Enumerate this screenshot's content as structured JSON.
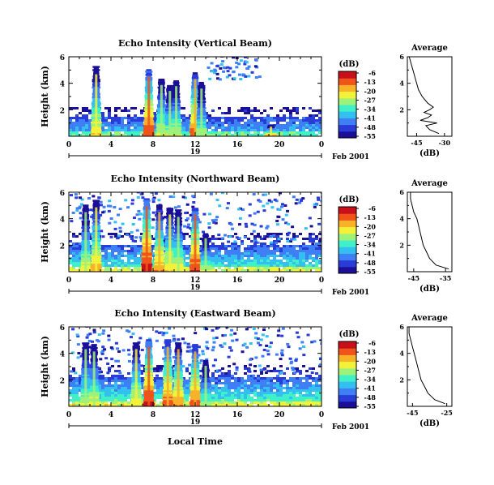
{
  "figure": {
    "xlabel": "Local Time",
    "date_label": "Feb 2001",
    "day_label": "19",
    "cbar_unit": "(dB)",
    "avg_title": "Average",
    "avg_xlabel": "(dB)",
    "ylabel": "Height (km)",
    "colormap": [
      "#1a0f96",
      "#2a3cd8",
      "#3f7ff5",
      "#33c0f0",
      "#3ff0c8",
      "#9ef27a",
      "#f2f23a",
      "#f7b22a",
      "#f0541a",
      "#c8101a"
    ]
  },
  "chart_data": [
    {
      "type": "heatmap",
      "title": "Echo Intensity (Vertical Beam)",
      "xlabel": "Local Time",
      "ylabel": "Height (km)",
      "x_ticks": [
        "0",
        "4",
        "8",
        "12",
        "16",
        "20",
        "0"
      ],
      "y_ticks": [
        "2",
        "4",
        "6"
      ],
      "xlim": [
        0,
        24
      ],
      "ylim": [
        0,
        6
      ],
      "colorbar": {
        "unit": "(dB)",
        "ticks": [
          "-6",
          "-13",
          "-20",
          "-27",
          "-34",
          "-41",
          "-48",
          "-55"
        ],
        "range": [
          -55,
          -6
        ]
      },
      "cloud_columns": [
        {
          "hour": 2.6,
          "top_km": 5.2,
          "peak_db": -18
        },
        {
          "hour": 7.6,
          "top_km": 5.0,
          "peak_db": -8
        },
        {
          "hour": 8.8,
          "top_km": 4.3,
          "peak_db": -20
        },
        {
          "hour": 9.6,
          "top_km": 3.8,
          "peak_db": -24
        },
        {
          "hour": 10.2,
          "top_km": 4.2,
          "peak_db": -22
        },
        {
          "hour": 12.0,
          "top_km": 4.8,
          "peak_db": -10
        },
        {
          "hour": 12.6,
          "top_km": 4.0,
          "peak_db": -24
        },
        {
          "hour": 19.2,
          "top_km": 0.8,
          "peak_db": -18
        }
      ],
      "boundary_layer_top_km": 1.3,
      "average_profile": {
        "title": "Average",
        "xlabel": "(dB)",
        "x_ticks": [
          "-45",
          "-30"
        ],
        "y_ticks": [
          "2",
          "4",
          "6"
        ],
        "xlim": [
          -50,
          -26
        ],
        "height_km": [
          0.2,
          0.5,
          0.8,
          1.0,
          1.2,
          1.4,
          1.6,
          1.8,
          2.0,
          2.2,
          2.5,
          3.0,
          3.5,
          4.0,
          4.5,
          5.0,
          5.5,
          6.0
        ],
        "db": [
          -33,
          -38,
          -40,
          -34,
          -43,
          -39,
          -37,
          -41,
          -38,
          -36,
          -39,
          -42,
          -44,
          -45,
          -46,
          -47,
          -48,
          -49
        ]
      }
    },
    {
      "type": "heatmap",
      "title": "Echo Intensity (Northward Beam)",
      "xlabel": "Local Time",
      "ylabel": "Height (km)",
      "x_ticks": [
        "0",
        "4",
        "8",
        "12",
        "16",
        "20",
        "0"
      ],
      "y_ticks": [
        "2",
        "4",
        "6"
      ],
      "xlim": [
        0,
        24
      ],
      "ylim": [
        0,
        6
      ],
      "colorbar": {
        "unit": "(dB)",
        "ticks": [
          "-6",
          "-13",
          "-20",
          "-27",
          "-34",
          "-41",
          "-48",
          "-55"
        ],
        "range": [
          -55,
          -6
        ]
      },
      "cloud_columns": [
        {
          "hour": 1.6,
          "top_km": 5.0,
          "peak_db": -20
        },
        {
          "hour": 2.6,
          "top_km": 5.4,
          "peak_db": -16
        },
        {
          "hour": 7.4,
          "top_km": 5.5,
          "peak_db": -6
        },
        {
          "hour": 8.6,
          "top_km": 5.0,
          "peak_db": -14
        },
        {
          "hour": 9.6,
          "top_km": 4.8,
          "peak_db": -18
        },
        {
          "hour": 10.4,
          "top_km": 4.6,
          "peak_db": -20
        },
        {
          "hour": 12.0,
          "top_km": 4.8,
          "peak_db": -8
        },
        {
          "hour": 13.0,
          "top_km": 2.8,
          "peak_db": -24
        }
      ],
      "boundary_layer_top_km": 2.0,
      "average_profile": {
        "title": "Average",
        "xlabel": "(dB)",
        "x_ticks": [
          "-45",
          "-35"
        ],
        "y_ticks": [
          "2",
          "4",
          "6"
        ],
        "xlim": [
          -47,
          -33
        ],
        "height_km": [
          0.2,
          0.5,
          1.0,
          1.5,
          2.0,
          2.5,
          3.0,
          3.5,
          4.0,
          4.5,
          5.0,
          5.5,
          6.0
        ],
        "db": [
          -34,
          -38,
          -40,
          -41,
          -42,
          -42.5,
          -43,
          -43.5,
          -44,
          -45,
          -45.5,
          -46,
          -46
        ]
      }
    },
    {
      "type": "heatmap",
      "title": "Echo Intensity (Eastward Beam)",
      "xlabel": "Local Time",
      "ylabel": "Height (km)",
      "x_ticks": [
        "0",
        "4",
        "8",
        "12",
        "16",
        "20",
        "0"
      ],
      "y_ticks": [
        "2",
        "4",
        "6"
      ],
      "xlim": [
        0,
        24
      ],
      "ylim": [
        0,
        6
      ],
      "colorbar": {
        "unit": "(dB)",
        "ticks": [
          "-6",
          "-13",
          "-20",
          "-27",
          "-34",
          "-41",
          "-48",
          "-55"
        ],
        "range": [
          -55,
          -6
        ]
      },
      "cloud_columns": [
        {
          "hour": 1.6,
          "top_km": 4.8,
          "peak_db": -22
        },
        {
          "hour": 2.4,
          "top_km": 4.6,
          "peak_db": -20
        },
        {
          "hour": 6.4,
          "top_km": 4.8,
          "peak_db": -18
        },
        {
          "hour": 7.6,
          "top_km": 5.0,
          "peak_db": -6
        },
        {
          "hour": 9.4,
          "top_km": 5.0,
          "peak_db": -10
        },
        {
          "hour": 10.4,
          "top_km": 4.8,
          "peak_db": -14
        },
        {
          "hour": 12.0,
          "top_km": 4.6,
          "peak_db": -10
        },
        {
          "hour": 13.0,
          "top_km": 3.4,
          "peak_db": -24
        }
      ],
      "boundary_layer_top_km": 2.2,
      "average_profile": {
        "title": "Average",
        "xlabel": "(dB)",
        "x_ticks": [
          "-45",
          "-25"
        ],
        "y_ticks": [
          "2",
          "4",
          "6"
        ],
        "xlim": [
          -48,
          -22
        ],
        "height_km": [
          0.2,
          0.5,
          1.0,
          1.5,
          2.0,
          2.5,
          3.0,
          3.5,
          4.0,
          4.5,
          5.0,
          5.5,
          6.0
        ],
        "db": [
          -26,
          -32,
          -36,
          -38,
          -40,
          -41,
          -42,
          -43,
          -44,
          -45,
          -46,
          -47,
          -47
        ]
      }
    }
  ]
}
